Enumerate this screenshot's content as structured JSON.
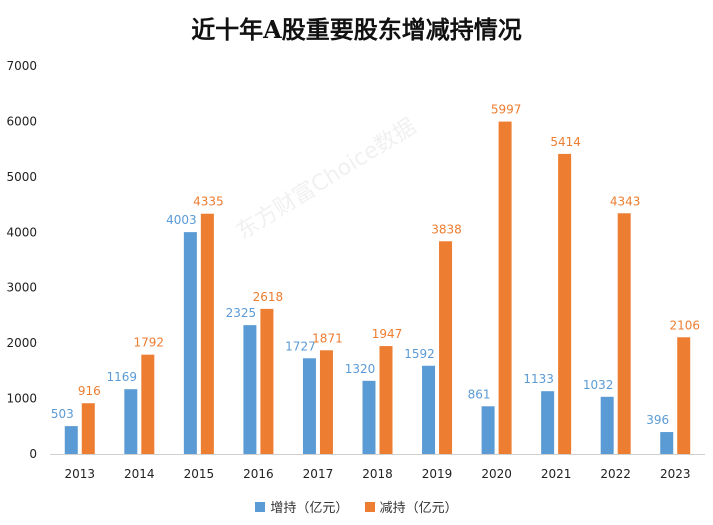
{
  "chart_data": {
    "type": "bar",
    "title": "近十年A股重要股东增减持情况",
    "categories": [
      "2013",
      "2014",
      "2015",
      "2016",
      "2017",
      "2018",
      "2019",
      "2020",
      "2021",
      "2022",
      "2023"
    ],
    "series": [
      {
        "name": "增持（亿元）",
        "color": "#5b9bd5",
        "values": [
          503,
          1169,
          4003,
          2325,
          1727,
          1320,
          1592,
          861,
          1133,
          1032,
          396
        ]
      },
      {
        "name": "减持（亿元）",
        "color": "#ed7d31",
        "values": [
          916,
          1792,
          4335,
          2618,
          1871,
          1947,
          3838,
          5997,
          5414,
          4343,
          2106
        ]
      }
    ],
    "ylim": [
      0,
      7000
    ],
    "yticks": [
      0,
      1000,
      2000,
      3000,
      4000,
      5000,
      6000,
      7000
    ],
    "xlabel": "",
    "ylabel": "",
    "grid": false,
    "legend_position": "bottom",
    "watermark": "东方财富Choice数据"
  }
}
